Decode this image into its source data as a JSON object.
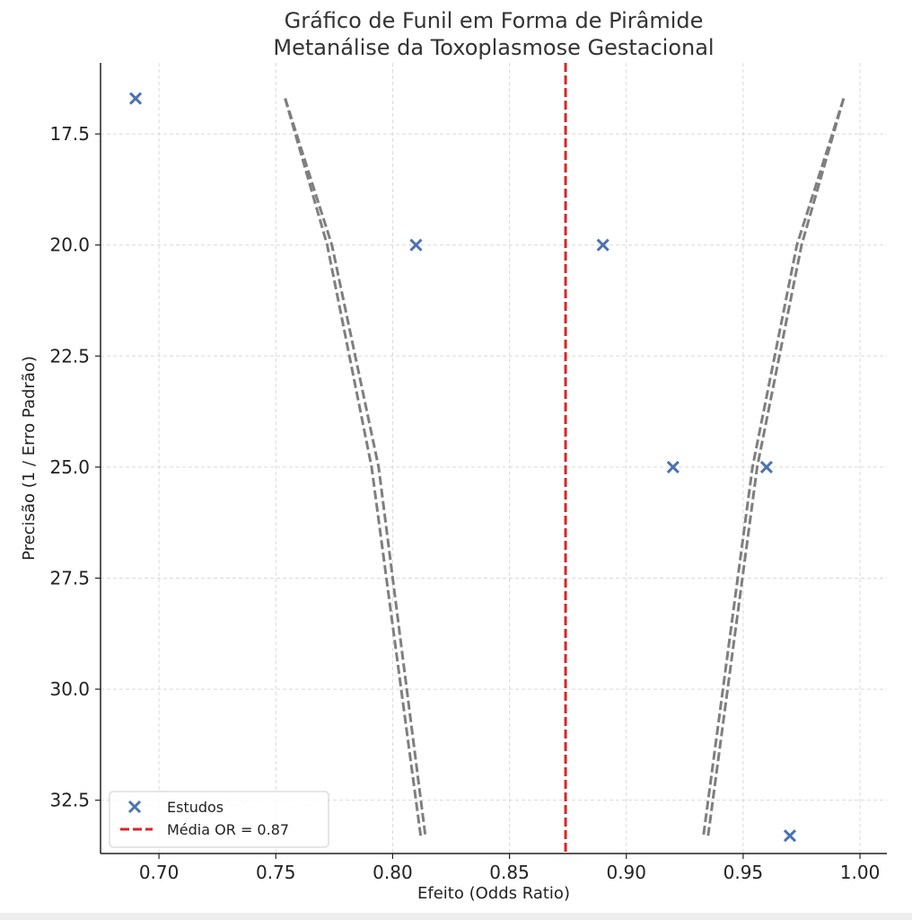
{
  "chart_data": {
    "type": "scatter",
    "title": "Gráfico de Funil em Forma de Pirâmide",
    "subtitle": "Metanálise da Toxoplasmose Gestacional",
    "xlabel": "Efeito (Odds Ratio)",
    "ylabel": "Precisão (1 / Erro Padrão)",
    "xlim": [
      0.675,
      1.0115
    ],
    "ylim": [
      33.7,
      15.9
    ],
    "y_inverted": true,
    "grid": true,
    "legend_position": "lower-left",
    "x_ticks": [
      "0.70",
      "0.75",
      "0.80",
      "0.85",
      "0.90",
      "0.95",
      "1.00"
    ],
    "y_ticks": [
      "17.5",
      "20.0",
      "22.5",
      "25.0",
      "27.5",
      "30.0",
      "32.5"
    ],
    "series": [
      {
        "name": "Estudos",
        "marker": "x",
        "color": "#4c72b0",
        "points": [
          {
            "x": 0.69,
            "y": 16.7
          },
          {
            "x": 0.81,
            "y": 20.0
          },
          {
            "x": 0.89,
            "y": 20.0
          },
          {
            "x": 0.92,
            "y": 25.0
          },
          {
            "x": 0.96,
            "y": 25.0
          },
          {
            "x": 0.97,
            "y": 33.3
          }
        ]
      }
    ],
    "mean_line": {
      "label": "Média OR = 0.87",
      "x": 0.874,
      "color": "#d62728"
    },
    "funnel_lines": {
      "color": "#7f7f7f",
      "left_a": [
        [
          0.754,
          16.7
        ],
        [
          0.772,
          20.0
        ],
        [
          0.791,
          25.0
        ],
        [
          0.812,
          33.3
        ]
      ],
      "left_b": [
        [
          0.754,
          16.7
        ],
        [
          0.774,
          20.0
        ],
        [
          0.794,
          25.0
        ],
        [
          0.814,
          33.3
        ]
      ],
      "right_a": [
        [
          0.993,
          16.7
        ],
        [
          0.973,
          20.0
        ],
        [
          0.954,
          25.0
        ],
        [
          0.933,
          33.3
        ]
      ],
      "right_b": [
        [
          0.993,
          16.7
        ],
        [
          0.975,
          20.0
        ],
        [
          0.956,
          25.0
        ],
        [
          0.935,
          33.3
        ]
      ]
    }
  }
}
